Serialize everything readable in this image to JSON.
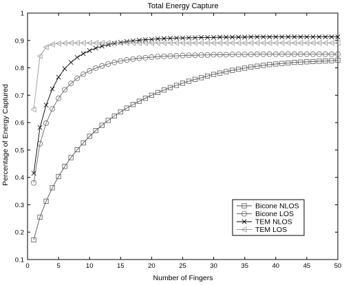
{
  "chart_data": {
    "type": "line",
    "title": "Total Energy Capture",
    "xlabel": "Number of Fingers",
    "ylabel": "Percentage of Energy Captured",
    "xlim": [
      0,
      50
    ],
    "ylim": [
      0.1,
      1.0
    ],
    "xticks": [
      0,
      5,
      10,
      15,
      20,
      25,
      30,
      35,
      40,
      45,
      50
    ],
    "yticks": [
      0.1,
      0.2,
      0.3,
      0.4,
      0.5,
      0.6,
      0.7,
      0.8,
      0.9,
      1
    ],
    "x": [
      1,
      2,
      3,
      4,
      5,
      6,
      7,
      8,
      9,
      10,
      11,
      12,
      13,
      14,
      15,
      16,
      17,
      18,
      19,
      20,
      21,
      22,
      23,
      24,
      25,
      26,
      27,
      28,
      29,
      30,
      31,
      32,
      33,
      34,
      35,
      36,
      37,
      38,
      39,
      40,
      41,
      42,
      43,
      44,
      45,
      46,
      47,
      48,
      49,
      50
    ],
    "grid": false,
    "legend_position": "lower-right",
    "series": [
      {
        "name": "Bicone NLOS",
        "marker": "square",
        "color": "#555555",
        "values": [
          0.172,
          0.255,
          0.313,
          0.362,
          0.403,
          0.44,
          0.472,
          0.501,
          0.526,
          0.55,
          0.571,
          0.59,
          0.608,
          0.624,
          0.639,
          0.653,
          0.666,
          0.678,
          0.689,
          0.7,
          0.71,
          0.719,
          0.728,
          0.736,
          0.744,
          0.751,
          0.758,
          0.764,
          0.77,
          0.776,
          0.781,
          0.786,
          0.791,
          0.795,
          0.799,
          0.803,
          0.806,
          0.809,
          0.812,
          0.814,
          0.816,
          0.818,
          0.82,
          0.821,
          0.822,
          0.823,
          0.824,
          0.825,
          0.826,
          0.828
        ]
      },
      {
        "name": "Bicone LOS",
        "marker": "circle",
        "color": "#666666",
        "values": [
          0.38,
          0.523,
          0.598,
          0.65,
          0.689,
          0.72,
          0.743,
          0.762,
          0.777,
          0.789,
          0.799,
          0.807,
          0.814,
          0.82,
          0.825,
          0.829,
          0.832,
          0.835,
          0.837,
          0.839,
          0.841,
          0.842,
          0.843,
          0.844,
          0.845,
          0.846,
          0.846,
          0.847,
          0.847,
          0.848,
          0.848,
          0.848,
          0.849,
          0.849,
          0.849,
          0.849,
          0.85,
          0.85,
          0.85,
          0.85,
          0.85,
          0.85,
          0.85,
          0.85,
          0.85,
          0.85,
          0.85,
          0.85,
          0.85,
          0.85
        ]
      },
      {
        "name": "TEM NLOS",
        "marker": "x",
        "color": "#000000",
        "values": [
          0.415,
          0.582,
          0.664,
          0.723,
          0.766,
          0.797,
          0.82,
          0.838,
          0.852,
          0.863,
          0.872,
          0.879,
          0.885,
          0.889,
          0.893,
          0.896,
          0.899,
          0.901,
          0.903,
          0.904,
          0.906,
          0.907,
          0.908,
          0.909,
          0.909,
          0.91,
          0.91,
          0.911,
          0.911,
          0.911,
          0.912,
          0.912,
          0.912,
          0.912,
          0.912,
          0.913,
          0.913,
          0.913,
          0.913,
          0.913,
          0.913,
          0.913,
          0.913,
          0.913,
          0.913,
          0.913,
          0.913,
          0.913,
          0.913,
          0.913
        ]
      },
      {
        "name": "TEM LOS",
        "marker": "triangle-left",
        "color": "#999999",
        "values": [
          0.648,
          0.843,
          0.876,
          0.886,
          0.889,
          0.89,
          0.891,
          0.891,
          0.891,
          0.891,
          0.891,
          0.891,
          0.891,
          0.891,
          0.891,
          0.891,
          0.891,
          0.891,
          0.891,
          0.891,
          0.891,
          0.891,
          0.891,
          0.891,
          0.891,
          0.891,
          0.891,
          0.891,
          0.891,
          0.891,
          0.891,
          0.891,
          0.891,
          0.891,
          0.891,
          0.891,
          0.891,
          0.891,
          0.891,
          0.891,
          0.891,
          0.891,
          0.891,
          0.891,
          0.891,
          0.891,
          0.891,
          0.891,
          0.891,
          0.891
        ]
      }
    ]
  }
}
